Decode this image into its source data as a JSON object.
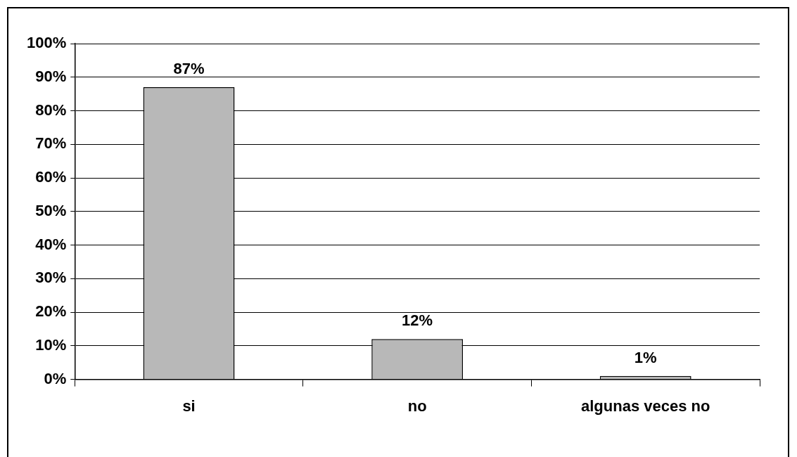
{
  "chart_data": {
    "type": "bar",
    "categories": [
      "si",
      "no",
      "algunas veces no"
    ],
    "values": [
      87,
      12,
      1
    ],
    "value_labels": [
      "87%",
      "12%",
      "1%"
    ],
    "color": "#b8b8b8",
    "ylim": [
      0,
      100
    ],
    "yticks": [
      {
        "value": 0,
        "label": "0%"
      },
      {
        "value": 10,
        "label": "10%"
      },
      {
        "value": 20,
        "label": "20%"
      },
      {
        "value": 30,
        "label": "30%"
      },
      {
        "value": 40,
        "label": "40%"
      },
      {
        "value": 50,
        "label": "50%"
      },
      {
        "value": 60,
        "label": "60%"
      },
      {
        "value": 70,
        "label": "70%"
      },
      {
        "value": 80,
        "label": "80%"
      },
      {
        "value": 90,
        "label": "90%"
      },
      {
        "value": 100,
        "label": "100%"
      }
    ],
    "grid": "y",
    "legend": false
  }
}
